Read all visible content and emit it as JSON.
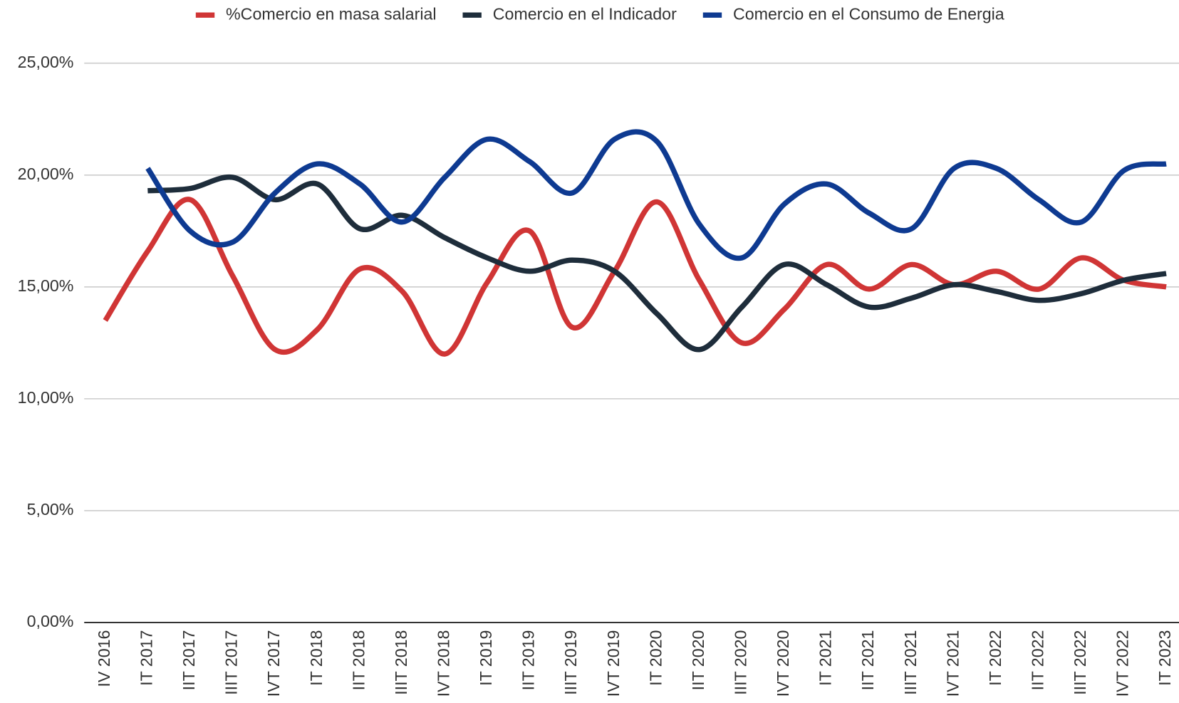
{
  "chart_data": {
    "type": "line",
    "categories": [
      "IV 2016",
      "IT 2017",
      "IIT 2017",
      "IIIT 2017",
      "IVT 2017",
      "IT 2018",
      "IIT 2018",
      "IIIT 2018",
      "IVT 2018",
      "IT 2019",
      "IIT 2019",
      "IIIT 2019",
      "IVT 2019",
      "IT 2020",
      "IIT 2020",
      "IIIT 2020",
      "IVT 2020",
      "IT 2021",
      "IIT 2021",
      "IIIT 2021",
      "IVT 2021",
      "IT 2022",
      "IIT 2022",
      "IIIT 2022",
      "IVT 2022",
      "IT 2023"
    ],
    "series": [
      {
        "name": "%Comercio en masa salarial",
        "color": "#d03535",
        "values": [
          13.5,
          16.6,
          18.9,
          15.5,
          12.2,
          13.1,
          15.8,
          14.8,
          12.0,
          15.2,
          17.5,
          13.2,
          15.7,
          18.8,
          15.3,
          12.5,
          14.0,
          16.0,
          14.9,
          16.0,
          15.1,
          15.7,
          14.9,
          16.3,
          15.3,
          15.0
        ]
      },
      {
        "name": "Comercio en el Indicador",
        "color": "#1e2d3b",
        "values": [
          null,
          19.3,
          19.4,
          19.9,
          18.9,
          19.6,
          17.6,
          18.2,
          17.2,
          16.3,
          15.7,
          16.2,
          15.7,
          13.8,
          12.2,
          14.1,
          16.0,
          15.1,
          14.1,
          14.5,
          15.1,
          14.8,
          14.4,
          14.7,
          15.3,
          15.6
        ]
      },
      {
        "name": "Comercio en el Consumo de Energia",
        "color": "#0e3a91",
        "values": [
          null,
          20.3,
          17.5,
          17.0,
          19.2,
          20.5,
          19.6,
          17.9,
          19.9,
          21.6,
          20.6,
          19.2,
          21.6,
          21.5,
          17.8,
          16.3,
          18.7,
          19.6,
          18.3,
          17.6,
          20.3,
          20.3,
          18.9,
          17.9,
          20.2,
          20.5
        ]
      }
    ],
    "ylim": [
      0,
      25
    ],
    "yticks": [
      {
        "value": 0,
        "label": "0,00%"
      },
      {
        "value": 5,
        "label": "5,00%"
      },
      {
        "value": 10,
        "label": "10,00%"
      },
      {
        "value": 15,
        "label": "15,00%"
      },
      {
        "value": 20,
        "label": "20,00%"
      },
      {
        "value": 25,
        "label": "25,00%"
      }
    ],
    "grid": true,
    "legend": "top"
  }
}
